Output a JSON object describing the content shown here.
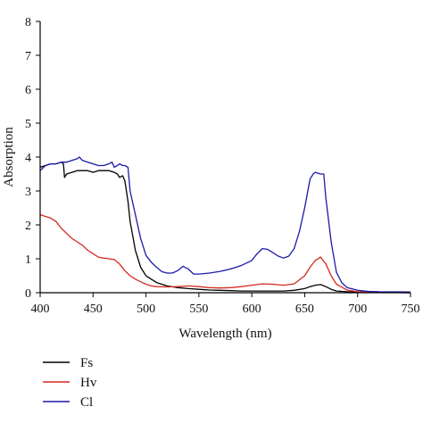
{
  "chart_data": {
    "type": "line",
    "title": "",
    "xlabel": "Wavelength (nm)",
    "ylabel": "Absorption",
    "xlim": [
      400,
      750
    ],
    "ylim": [
      0,
      8
    ],
    "x_ticks": [
      400,
      450,
      500,
      550,
      600,
      650,
      700,
      750
    ],
    "y_ticks": [
      0,
      1,
      2,
      3,
      4,
      5,
      6,
      7,
      8
    ],
    "grid": false,
    "legend_position": "bottom-left",
    "series": [
      {
        "name": "Fs",
        "color": "#000000",
        "x": [
          400,
          405,
          410,
          415,
          420,
          422,
          423,
          425,
          430,
          435,
          440,
          445,
          450,
          455,
          460,
          465,
          470,
          473,
          475,
          478,
          480,
          483,
          485,
          490,
          495,
          500,
          505,
          510,
          515,
          520,
          530,
          540,
          550,
          560,
          570,
          580,
          590,
          600,
          610,
          620,
          630,
          640,
          650,
          655,
          660,
          665,
          670,
          675,
          680,
          690,
          700,
          720,
          750
        ],
        "values": [
          3.7,
          3.75,
          3.8,
          3.8,
          3.85,
          3.8,
          3.4,
          3.5,
          3.55,
          3.6,
          3.6,
          3.6,
          3.55,
          3.6,
          3.6,
          3.6,
          3.55,
          3.5,
          3.4,
          3.45,
          3.3,
          2.7,
          2.1,
          1.25,
          0.75,
          0.5,
          0.4,
          0.3,
          0.25,
          0.2,
          0.15,
          0.12,
          0.1,
          0.08,
          0.07,
          0.06,
          0.05,
          0.05,
          0.05,
          0.05,
          0.05,
          0.07,
          0.12,
          0.18,
          0.22,
          0.24,
          0.18,
          0.1,
          0.05,
          0.03,
          0.02,
          0.01,
          0.0
        ]
      },
      {
        "name": "Hv",
        "color": "#d42a20",
        "x": [
          400,
          405,
          410,
          415,
          420,
          425,
          430,
          435,
          440,
          445,
          450,
          455,
          460,
          465,
          470,
          475,
          480,
          485,
          490,
          495,
          500,
          505,
          510,
          520,
          530,
          540,
          550,
          560,
          570,
          580,
          590,
          600,
          610,
          620,
          630,
          640,
          650,
          655,
          660,
          665,
          670,
          675,
          680,
          690,
          700,
          720,
          750
        ],
        "values": [
          2.3,
          2.25,
          2.2,
          2.1,
          1.9,
          1.75,
          1.6,
          1.5,
          1.4,
          1.25,
          1.15,
          1.05,
          1.02,
          1.0,
          0.98,
          0.85,
          0.65,
          0.5,
          0.4,
          0.32,
          0.25,
          0.2,
          0.18,
          0.17,
          0.18,
          0.2,
          0.18,
          0.15,
          0.14,
          0.15,
          0.18,
          0.22,
          0.26,
          0.25,
          0.22,
          0.26,
          0.5,
          0.75,
          0.95,
          1.05,
          0.85,
          0.5,
          0.25,
          0.08,
          0.03,
          0.01,
          0.0
        ]
      },
      {
        "name": "Cl",
        "color": "#1a1aaa",
        "x": [
          400,
          405,
          410,
          415,
          420,
          425,
          430,
          435,
          437,
          440,
          445,
          450,
          455,
          460,
          465,
          468,
          470,
          473,
          475,
          478,
          480,
          483,
          485,
          490,
          495,
          500,
          505,
          510,
          515,
          520,
          525,
          530,
          535,
          540,
          545,
          550,
          560,
          570,
          580,
          590,
          600,
          605,
          610,
          615,
          620,
          625,
          630,
          635,
          640,
          645,
          650,
          655,
          658,
          660,
          665,
          668,
          670,
          675,
          680,
          685,
          690,
          700,
          710,
          720,
          750
        ],
        "values": [
          3.6,
          3.75,
          3.8,
          3.8,
          3.85,
          3.85,
          3.9,
          3.95,
          4.0,
          3.9,
          3.85,
          3.8,
          3.75,
          3.75,
          3.8,
          3.85,
          3.7,
          3.75,
          3.8,
          3.75,
          3.75,
          3.7,
          3.0,
          2.3,
          1.6,
          1.1,
          0.9,
          0.75,
          0.62,
          0.58,
          0.58,
          0.65,
          0.78,
          0.7,
          0.55,
          0.55,
          0.58,
          0.63,
          0.7,
          0.8,
          0.95,
          1.15,
          1.3,
          1.28,
          1.18,
          1.08,
          1.02,
          1.08,
          1.3,
          1.8,
          2.5,
          3.35,
          3.5,
          3.55,
          3.5,
          3.5,
          2.8,
          1.5,
          0.6,
          0.3,
          0.15,
          0.07,
          0.04,
          0.03,
          0.02
        ]
      }
    ]
  },
  "legend": {
    "items": [
      {
        "label": "Fs",
        "color": "#000000"
      },
      {
        "label": "Hv",
        "color": "#d42a20"
      },
      {
        "label": "Cl",
        "color": "#1a1aaa"
      }
    ]
  }
}
